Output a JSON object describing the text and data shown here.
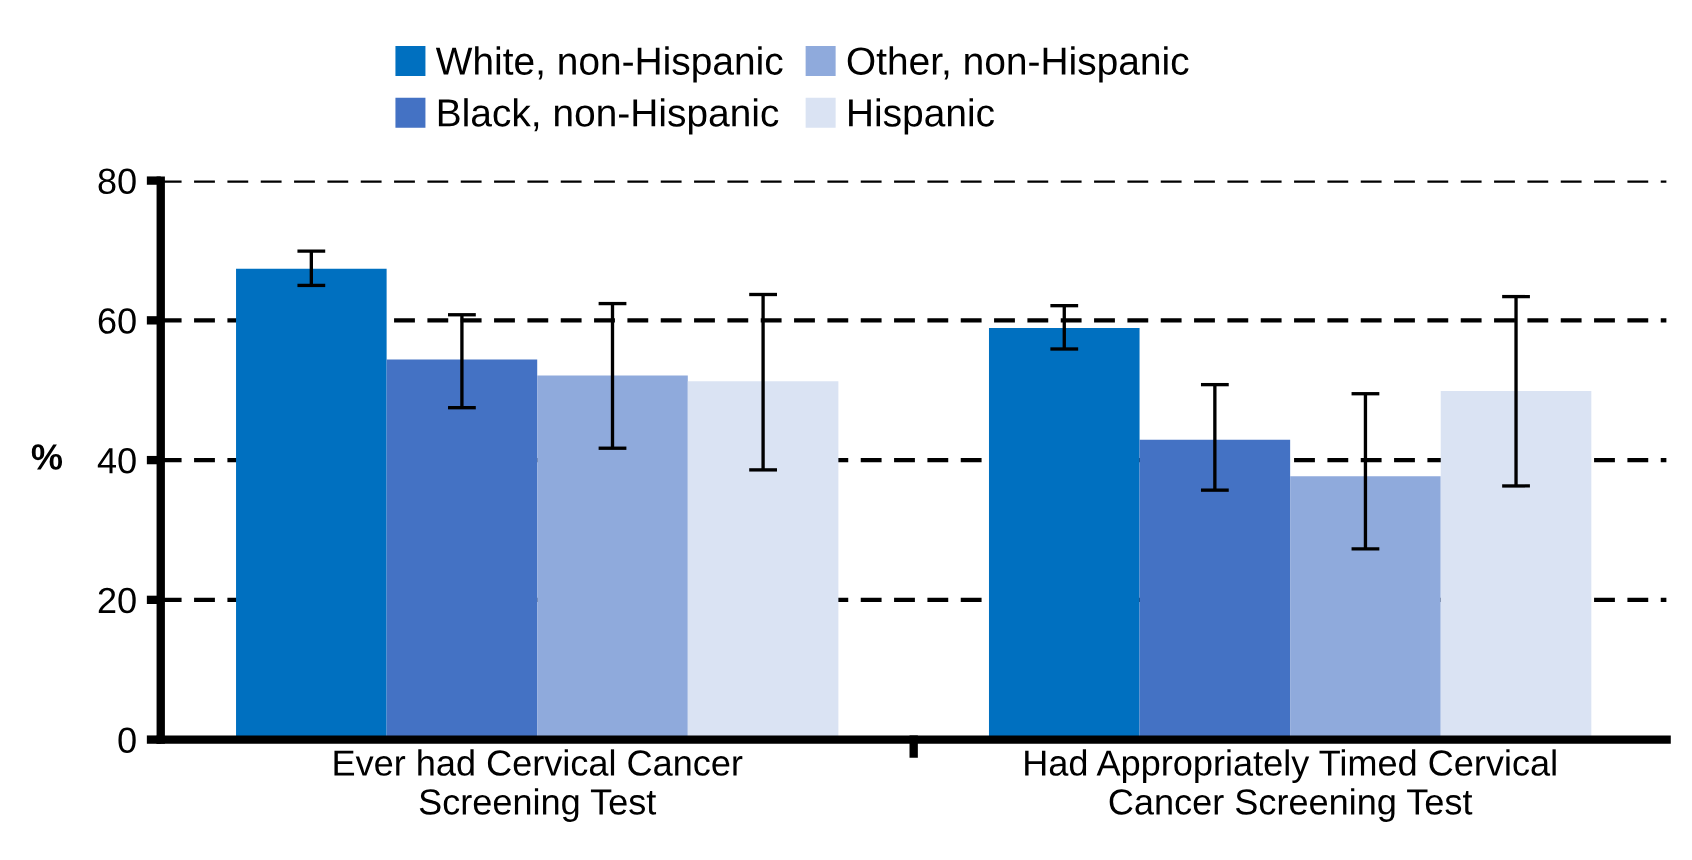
{
  "chart_data": {
    "type": "bar",
    "ylabel": "%",
    "categories": [
      "Ever had Cervical Cancer\nScreening Test",
      "Had Appropriately Timed Cervical\nCancer Screening Test"
    ],
    "series": [
      {
        "name": "White, non-Hispanic",
        "color": "#0070c0",
        "values": [
          67.4,
          58.9
        ],
        "errors": [
          [
            65.0,
            69.9
          ],
          [
            55.9,
            62.1
          ]
        ]
      },
      {
        "name": "Black, non-Hispanic",
        "color": "#4472c4",
        "values": [
          54.4,
          42.9
        ],
        "errors": [
          [
            47.5,
            60.8
          ],
          [
            35.7,
            50.8
          ]
        ]
      },
      {
        "name": "Other, non-Hispanic",
        "color": "#8faadc",
        "values": [
          52.1,
          37.7
        ],
        "errors": [
          [
            41.7,
            62.4
          ],
          [
            27.3,
            49.5
          ]
        ]
      },
      {
        "name": "Hispanic",
        "color": "#dae3f3",
        "values": [
          51.3,
          49.9
        ],
        "errors": [
          [
            38.6,
            63.7
          ],
          [
            36.3,
            63.4
          ]
        ]
      }
    ],
    "ylim": [
      0,
      80
    ],
    "yticks": [
      0,
      20,
      40,
      60,
      80
    ],
    "grid": "y",
    "legend": "top"
  }
}
